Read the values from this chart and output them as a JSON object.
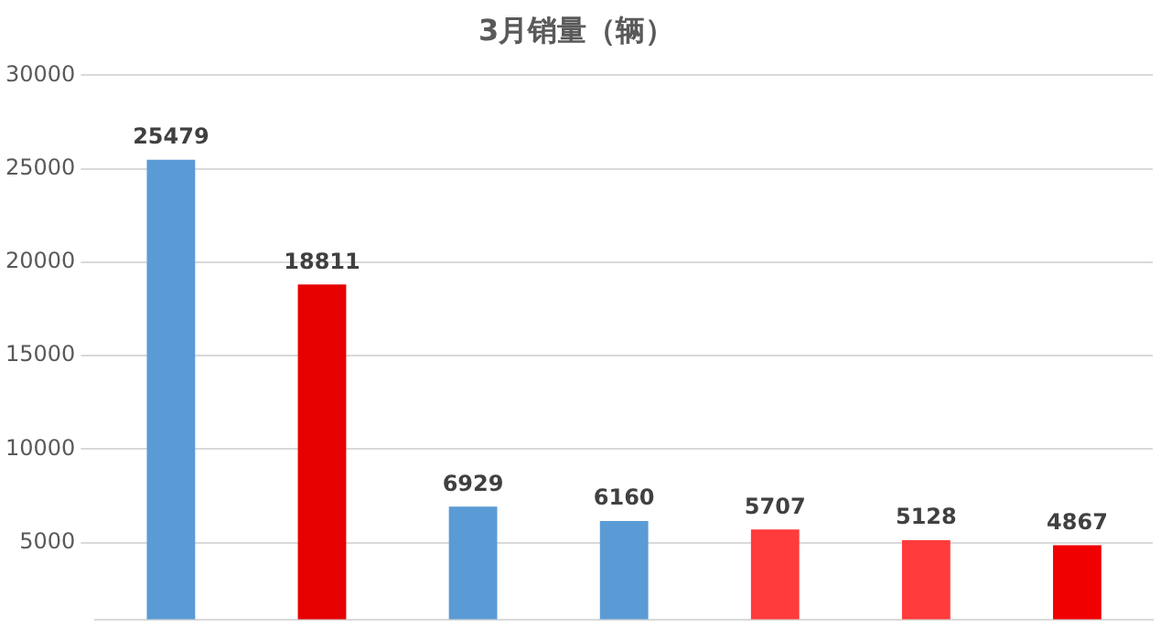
{
  "chart_data": {
    "type": "bar",
    "title": "3月销量（辆）",
    "categories": [
      null,
      null,
      null,
      null,
      null,
      null,
      null
    ],
    "values": [
      25479,
      18811,
      6929,
      6160,
      5707,
      5128,
      4867
    ],
    "colors": [
      "#5b9bd5",
      "#e60000",
      "#5b9bd5",
      "#5b9bd5",
      "#ff3b3b",
      "#ff3b3b",
      "#f00000"
    ],
    "ylim": [
      900,
      30000
    ],
    "yticks": [
      5000,
      10000,
      15000,
      20000,
      25000,
      30000
    ],
    "grid": "y",
    "tick_labels": "y",
    "data_labels": true,
    "legend": false
  }
}
